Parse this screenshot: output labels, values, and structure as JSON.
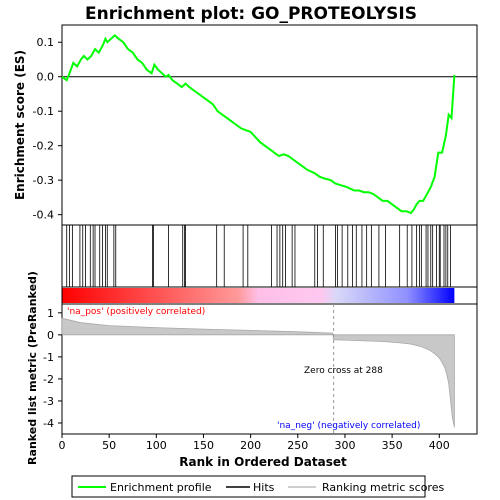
{
  "chart_data": {
    "type": "line",
    "title": "Enrichment plot: GO_PROTEOLYSIS",
    "xlabel": "Rank in Ordered Dataset",
    "es_ylabel": "Enrichment score (ES)",
    "metric_ylabel": "Ranked list metric (PreRanked)",
    "xlim": [
      0,
      440
    ],
    "x_ticks": [
      0,
      50,
      100,
      150,
      200,
      250,
      300,
      350,
      400
    ],
    "es_ylim": [
      -0.43,
      0.15
    ],
    "es_ticks": [
      0.1,
      0.0,
      -0.1,
      -0.2,
      -0.3,
      -0.4
    ],
    "metric_ylim": [
      -4.5,
      1.4
    ],
    "metric_ticks": [
      1,
      0,
      -1,
      -2,
      -3,
      -4
    ],
    "n_genes": 416,
    "zero_cross": 288,
    "zero_cross_label": "Zero cross at 288",
    "pos_label": "'na_pos' (positively correlated)",
    "neg_label": "'na_neg' (negatively correlated)",
    "pos_label_color": "#ff0000",
    "neg_label_color": "#0000ff",
    "es_line_color": "#00ff00",
    "series": [
      {
        "name": "Enrichment profile",
        "x": [
          0,
          5,
          8,
          12,
          16,
          20,
          23,
          27,
          31,
          35,
          39,
          43,
          46,
          48,
          52,
          56,
          60,
          65,
          70,
          75,
          80,
          85,
          90,
          95,
          98,
          102,
          106,
          110,
          113,
          117,
          122,
          127,
          131,
          135,
          140,
          150,
          160,
          165,
          170,
          175,
          180,
          185,
          190,
          195,
          200,
          210,
          220,
          225,
          230,
          235,
          240,
          245,
          250,
          260,
          268,
          273,
          278,
          285,
          290,
          296,
          302,
          306,
          310,
          315,
          320,
          325,
          330,
          335,
          340,
          345,
          350,
          355,
          360,
          365,
          370,
          373,
          376,
          379,
          383,
          387,
          391,
          395,
          399,
          403,
          407,
          410,
          413,
          416
        ],
        "values": [
          0.0,
          -0.01,
          0.01,
          0.04,
          0.03,
          0.05,
          0.06,
          0.05,
          0.06,
          0.08,
          0.07,
          0.09,
          0.11,
          0.1,
          0.11,
          0.12,
          0.11,
          0.1,
          0.08,
          0.07,
          0.05,
          0.04,
          0.02,
          0.01,
          0.035,
          0.02,
          0.01,
          0.0,
          0.005,
          -0.01,
          -0.02,
          -0.03,
          -0.02,
          -0.03,
          -0.04,
          -0.06,
          -0.08,
          -0.1,
          -0.11,
          -0.12,
          -0.13,
          -0.14,
          -0.15,
          -0.155,
          -0.16,
          -0.19,
          -0.21,
          -0.22,
          -0.23,
          -0.225,
          -0.23,
          -0.24,
          -0.25,
          -0.27,
          -0.28,
          -0.29,
          -0.295,
          -0.3,
          -0.31,
          -0.315,
          -0.32,
          -0.325,
          -0.33,
          -0.33,
          -0.335,
          -0.335,
          -0.34,
          -0.35,
          -0.36,
          -0.36,
          -0.37,
          -0.38,
          -0.39,
          -0.39,
          -0.395,
          -0.385,
          -0.37,
          -0.36,
          -0.36,
          -0.34,
          -0.32,
          -0.29,
          -0.22,
          -0.22,
          -0.17,
          -0.11,
          -0.12,
          0.005
        ]
      }
    ],
    "hits": [
      5,
      8,
      11,
      19,
      22,
      25,
      30,
      33,
      35,
      40,
      43,
      46,
      48,
      55,
      57,
      96,
      97,
      113,
      128,
      130,
      131,
      164,
      172,
      192,
      197,
      222,
      228,
      231,
      234,
      237,
      244,
      247,
      268,
      271,
      277,
      290,
      292,
      297,
      303,
      308,
      312,
      318,
      323,
      328,
      336,
      343,
      358,
      366,
      371,
      376,
      379,
      381,
      386,
      388,
      391,
      393,
      397,
      400,
      401,
      405,
      407,
      409,
      412
    ],
    "metric_curve": {
      "x": [
        0,
        20,
        50,
        100,
        150,
        200,
        250,
        287,
        288,
        300,
        340,
        360,
        370,
        380,
        390,
        395,
        400,
        403,
        406,
        408,
        410,
        412,
        414,
        416
      ],
      "values": [
        0.75,
        0.55,
        0.42,
        0.33,
        0.26,
        0.2,
        0.14,
        0.08,
        -0.22,
        -0.24,
        -0.3,
        -0.37,
        -0.42,
        -0.52,
        -0.7,
        -0.85,
        -1.05,
        -1.25,
        -1.5,
        -1.8,
        -2.2,
        -3.0,
        -3.8,
        -4.2
      ]
    }
  },
  "legend": {
    "items": [
      {
        "label": "Enrichment profile",
        "color": "#00ff00"
      },
      {
        "label": "Hits",
        "color": "#000000"
      },
      {
        "label": "Ranking metric scores",
        "color": "#bebebe"
      }
    ]
  }
}
